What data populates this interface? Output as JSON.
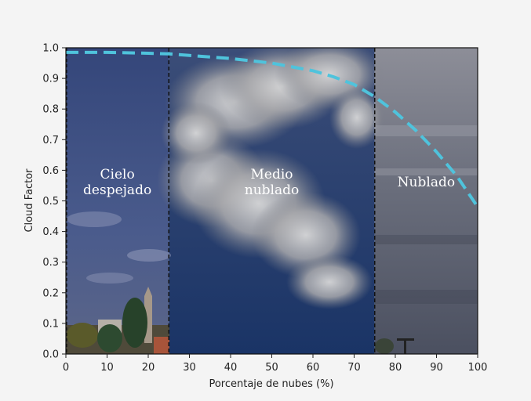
{
  "chart_data": {
    "type": "line",
    "title": "",
    "xlabel": "Porcentaje de nubes (%)",
    "ylabel": "Cloud Factor",
    "xlim": [
      0,
      100
    ],
    "ylim": [
      0,
      1.0
    ],
    "xticks": [
      "0",
      "10",
      "20",
      "30",
      "40",
      "50",
      "60",
      "70",
      "80",
      "90",
      "100"
    ],
    "yticks": [
      "0.0",
      "0.1",
      "0.2",
      "0.3",
      "0.4",
      "0.5",
      "0.6",
      "0.7",
      "0.8",
      "0.9",
      "1.0"
    ],
    "grid": false,
    "series": [
      {
        "style": "dashed",
        "color": "#4fc3dc",
        "x": [
          0,
          10,
          20,
          25,
          30,
          40,
          50,
          60,
          65,
          70,
          75,
          80,
          85,
          90,
          95,
          100
        ],
        "y": [
          0.985,
          0.985,
          0.982,
          0.98,
          0.975,
          0.965,
          0.95,
          0.925,
          0.905,
          0.88,
          0.84,
          0.79,
          0.73,
          0.66,
          0.58,
          0.48
        ]
      }
    ],
    "vlines": [
      {
        "x": 25,
        "style": "dashed",
        "color": "#111111"
      },
      {
        "x": 75,
        "style": "dashed",
        "color": "#111111"
      }
    ],
    "regions": [
      {
        "x_range": [
          0,
          25
        ],
        "label_lines": [
          "Cielo",
          "despejado"
        ],
        "tint": "#3a4f80"
      },
      {
        "x_range": [
          25,
          75
        ],
        "label_lines": [
          "Medio",
          "nublado"
        ],
        "tint": "#1e3a6e"
      },
      {
        "x_range": [
          75,
          100
        ],
        "label_lines": [
          "Nublado"
        ],
        "tint": "#5d6475"
      }
    ]
  }
}
